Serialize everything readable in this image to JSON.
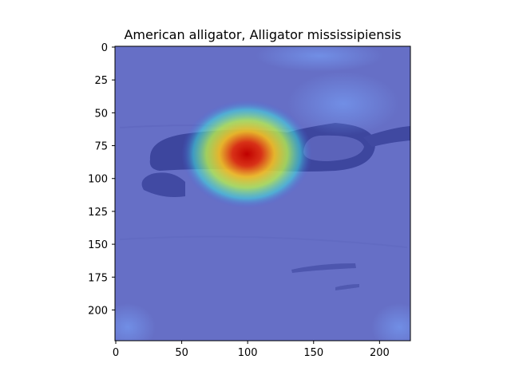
{
  "chart_data": {
    "type": "heatmap",
    "title": "American alligator, Alligator mississipiensis",
    "xlabel": "",
    "ylabel": "",
    "xlim": [
      0,
      224
    ],
    "ylim": [
      224,
      0
    ],
    "x_ticks": [
      0,
      50,
      100,
      150,
      200
    ],
    "y_ticks": [
      0,
      25,
      50,
      75,
      100,
      125,
      150,
      175,
      200
    ],
    "grid": false,
    "colormap": "jet",
    "hotspot": {
      "x": 100,
      "y": 82,
      "intensity": 1.0
    },
    "image_colors": {
      "sand": "#b9b2a6",
      "overlay_base": "#4a55d8",
      "hot": "#d01a10"
    }
  }
}
